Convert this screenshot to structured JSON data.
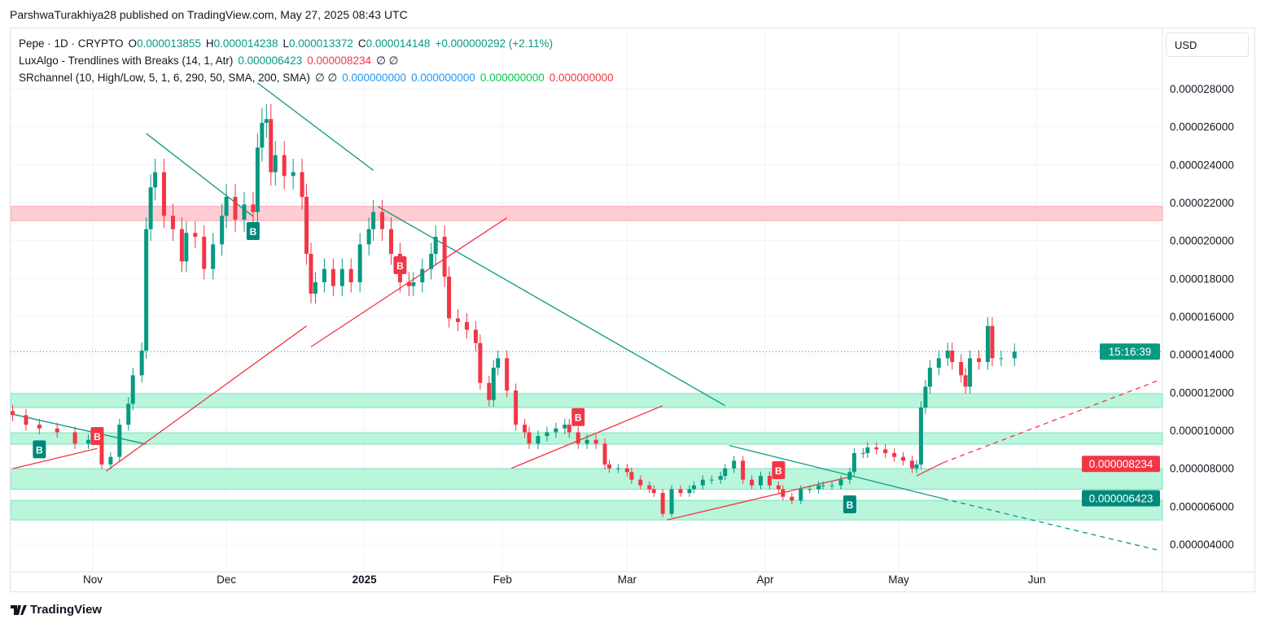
{
  "publisher": "ParshwaTurakhiya28 published on TradingView.com, May 27, 2025 08:43 UTC",
  "legend": {
    "symbol": "Pepe · 1D · CRYPTO",
    "o_label": "O",
    "o": "0.000013855",
    "h_label": "H",
    "h": "0.000014238",
    "l_label": "L",
    "l": "0.000013372",
    "c_label": "C",
    "c": "0.000014148",
    "change": "+0.000000292 (+2.11%)",
    "ind1": "LuxAlgo - Trendlines with Breaks (14, 1, Atr)",
    "ind1_v1": "0.000006423",
    "ind1_v2": "0.000008234",
    "ind1_v3": "∅  ∅",
    "ind2": "SRchannel (10, High/Low, 5, 1, 6, 290, 50, SMA, 200, SMA)",
    "ind2_na": "∅  ∅",
    "ind2_v1": "0.000000000",
    "ind2_v2": "0.000000000",
    "ind2_v3": "0.000000000",
    "ind2_v4": "0.000000000"
  },
  "currency_button": "USD",
  "logo": "TradingView",
  "colors": {
    "up": "#089981",
    "down": "#f23645",
    "resistance_zone": "#ffcdd2",
    "support_zone": "#b9f6dc"
  },
  "chart_data": {
    "type": "candlestick",
    "ylim": [
      3.5e-06,
      2.95e-05
    ],
    "y_ticks": [
      "0.000004000",
      "0.000006000",
      "0.000008000",
      "0.000010000",
      "0.000012000",
      "0.000014000",
      "0.000016000",
      "0.000018000",
      "0.000020000",
      "0.000022000",
      "0.000024000",
      "0.000026000",
      "0.000028000"
    ],
    "y_tick_values": [
      4e-06,
      6e-06,
      8e-06,
      1e-05,
      1.2e-05,
      1.4e-05,
      1.6e-05,
      1.8e-05,
      2e-05,
      2.2e-05,
      2.4e-05,
      2.6e-05,
      2.8e-05
    ],
    "x_ticks": [
      {
        "label": "Nov",
        "date": "2024-11-01"
      },
      {
        "label": "Dec",
        "date": "2024-12-01"
      },
      {
        "label": "2025",
        "date": "2025-01-01",
        "bold": true
      },
      {
        "label": "Feb",
        "date": "2025-02-01"
      },
      {
        "label": "Mar",
        "date": "2025-03-01"
      },
      {
        "label": "Apr",
        "date": "2025-04-01"
      },
      {
        "label": "May",
        "date": "2025-05-01"
      },
      {
        "label": "Jun",
        "date": "2025-06-01"
      }
    ],
    "series": [
      [
        "2024-10-14",
        1.08e-05
      ],
      [
        "2024-10-17",
        1.03e-05
      ],
      [
        "2024-10-20",
        1.01e-05
      ],
      [
        "2024-10-24",
        9.9e-06
      ],
      [
        "2024-10-28",
        9.3e-06
      ],
      [
        "2024-10-31",
        9.5e-06
      ],
      [
        "2024-11-03",
        8.2e-06
      ],
      [
        "2024-11-05",
        8.6e-06
      ],
      [
        "2024-11-07",
        1.03e-05
      ],
      [
        "2024-11-09",
        1.14e-05
      ],
      [
        "2024-11-10",
        1.29e-05
      ],
      [
        "2024-11-12",
        1.42e-05
      ],
      [
        "2024-11-13",
        2.06e-05
      ],
      [
        "2024-11-14",
        2.28e-05
      ],
      [
        "2024-11-15",
        2.36e-05
      ],
      [
        "2024-11-17",
        2.13e-05
      ],
      [
        "2024-11-19",
        2.06e-05
      ],
      [
        "2024-11-21",
        1.89e-05
      ],
      [
        "2024-11-22",
        2.04e-05
      ],
      [
        "2024-11-24",
        2.02e-05
      ],
      [
        "2024-11-26",
        1.85e-05
      ],
      [
        "2024-11-28",
        1.98e-05
      ],
      [
        "2024-11-30",
        2.13e-05
      ],
      [
        "2024-12-01",
        2.23e-05
      ],
      [
        "2024-12-03",
        2.11e-05
      ],
      [
        "2024-12-05",
        2.19e-05
      ],
      [
        "2024-12-07",
        2.15e-05
      ],
      [
        "2024-12-08",
        2.49e-05
      ],
      [
        "2024-12-09",
        2.62e-05
      ],
      [
        "2024-12-10",
        2.64e-05
      ],
      [
        "2024-12-11",
        2.36e-05
      ],
      [
        "2024-12-12",
        2.45e-05
      ],
      [
        "2024-12-14",
        2.34e-05
      ],
      [
        "2024-12-16",
        2.36e-05
      ],
      [
        "2024-12-18",
        2.23e-05
      ],
      [
        "2024-12-19",
        1.93e-05
      ],
      [
        "2024-12-20",
        1.72e-05
      ],
      [
        "2024-12-21",
        1.78e-05
      ],
      [
        "2024-12-23",
        1.85e-05
      ],
      [
        "2024-12-25",
        1.76e-05
      ],
      [
        "2024-12-27",
        1.85e-05
      ],
      [
        "2024-12-29",
        1.78e-05
      ],
      [
        "2024-12-31",
        1.98e-05
      ],
      [
        "2025-01-02",
        2.06e-05
      ],
      [
        "2025-01-03",
        2.15e-05
      ],
      [
        "2025-01-05",
        2.06e-05
      ],
      [
        "2025-01-07",
        1.93e-05
      ],
      [
        "2025-01-09",
        1.78e-05
      ],
      [
        "2025-01-11",
        1.76e-05
      ],
      [
        "2025-01-12",
        1.78e-05
      ],
      [
        "2025-01-14",
        1.85e-05
      ],
      [
        "2025-01-16",
        1.93e-05
      ],
      [
        "2025-01-17",
        2.02e-05
      ],
      [
        "2025-01-19",
        1.81e-05
      ],
      [
        "2025-01-20",
        1.59e-05
      ],
      [
        "2025-01-22",
        1.57e-05
      ],
      [
        "2025-01-24",
        1.53e-05
      ],
      [
        "2025-01-26",
        1.46e-05
      ],
      [
        "2025-01-27",
        1.25e-05
      ],
      [
        "2025-01-29",
        1.16e-05
      ],
      [
        "2025-01-30",
        1.33e-05
      ],
      [
        "2025-01-31",
        1.38e-05
      ],
      [
        "2025-02-02",
        1.21e-05
      ],
      [
        "2025-02-04",
        1.03e-05
      ],
      [
        "2025-02-06",
        9.9e-06
      ],
      [
        "2025-02-07",
        9.3e-06
      ],
      [
        "2025-02-09",
        9.7e-06
      ],
      [
        "2025-02-11",
        9.9e-06
      ],
      [
        "2025-02-13",
        1.01e-05
      ],
      [
        "2025-02-15",
        1.03e-05
      ],
      [
        "2025-02-16",
        9.9e-06
      ],
      [
        "2025-02-18",
        9.3e-06
      ],
      [
        "2025-02-20",
        9.5e-06
      ],
      [
        "2025-02-22",
        9.3e-06
      ],
      [
        "2025-02-24",
        8.2e-06
      ],
      [
        "2025-02-25",
        8e-06
      ],
      [
        "2025-02-27",
        8e-06
      ],
      [
        "2025-03-01",
        7.8e-06
      ],
      [
        "2025-03-02",
        7.4e-06
      ],
      [
        "2025-03-04",
        7.1e-06
      ],
      [
        "2025-03-06",
        6.9e-06
      ],
      [
        "2025-03-07",
        6.7e-06
      ],
      [
        "2025-03-09",
        5.6e-06
      ],
      [
        "2025-03-11",
        6.9e-06
      ],
      [
        "2025-03-13",
        6.7e-06
      ],
      [
        "2025-03-15",
        6.9e-06
      ],
      [
        "2025-03-16",
        7.1e-06
      ],
      [
        "2025-03-18",
        7.4e-06
      ],
      [
        "2025-03-20",
        7.4e-06
      ],
      [
        "2025-03-22",
        7.6e-06
      ],
      [
        "2025-03-23",
        8e-06
      ],
      [
        "2025-03-25",
        8.4e-06
      ],
      [
        "2025-03-27",
        7.4e-06
      ],
      [
        "2025-03-29",
        7.1e-06
      ],
      [
        "2025-03-31",
        7.6e-06
      ],
      [
        "2025-04-02",
        7.1e-06
      ],
      [
        "2025-04-04",
        6.9e-06
      ],
      [
        "2025-04-05",
        6.5e-06
      ],
      [
        "2025-04-07",
        6.3e-06
      ],
      [
        "2025-04-09",
        6.9e-06
      ],
      [
        "2025-04-11",
        6.9e-06
      ],
      [
        "2025-04-13",
        7.1e-06
      ],
      [
        "2025-04-14",
        7.1e-06
      ],
      [
        "2025-04-16",
        7.1e-06
      ],
      [
        "2025-04-18",
        7.4e-06
      ],
      [
        "2025-04-20",
        7.8e-06
      ],
      [
        "2025-04-21",
        8.8e-06
      ],
      [
        "2025-04-23",
        8.8e-06
      ],
      [
        "2025-04-24",
        9.1e-06
      ],
      [
        "2025-04-26",
        9e-06
      ],
      [
        "2025-04-28",
        8.8e-06
      ],
      [
        "2025-04-30",
        8.6e-06
      ],
      [
        "2025-05-02",
        8.4e-06
      ],
      [
        "2025-05-04",
        8e-06
      ],
      [
        "2025-05-05",
        8.2e-06
      ],
      [
        "2025-05-06",
        1.12e-05
      ],
      [
        "2025-05-07",
        1.23e-05
      ],
      [
        "2025-05-08",
        1.33e-05
      ],
      [
        "2025-05-10",
        1.38e-05
      ],
      [
        "2025-05-12",
        1.42e-05
      ],
      [
        "2025-05-13",
        1.36e-05
      ],
      [
        "2025-05-15",
        1.29e-05
      ],
      [
        "2025-05-16",
        1.23e-05
      ],
      [
        "2025-05-17",
        1.38e-05
      ],
      [
        "2025-05-19",
        1.36e-05
      ],
      [
        "2025-05-21",
        1.55e-05
      ],
      [
        "2025-05-22",
        1.38e-05
      ],
      [
        "2025-05-24",
        1.38e-05
      ],
      [
        "2025-05-27",
        1.4148e-05
      ]
    ],
    "zones": [
      {
        "kind": "resistance",
        "from": 2.105e-05,
        "to": 2.18e-05
      },
      {
        "kind": "support",
        "from": 1.12e-05,
        "to": 1.193e-05
      },
      {
        "kind": "support",
        "from": 9.27e-06,
        "to": 9.87e-06
      },
      {
        "kind": "support",
        "from": 6.9e-06,
        "to": 7.98e-06
      },
      {
        "kind": "support",
        "from": 5.28e-06,
        "to": 6.31e-06
      }
    ],
    "trendlines": [
      {
        "color": "teal",
        "p1": [
          "2024-10-14",
          1.085e-05
        ],
        "p2": [
          "2024-11-13",
          9.27e-06
        ]
      },
      {
        "color": "teal",
        "p1": [
          "2024-11-13",
          2.564e-05
        ],
        "p2": [
          "2024-12-07",
          2.127e-05
        ]
      },
      {
        "color": "teal",
        "p1": [
          "2024-12-08",
          2.83e-05
        ],
        "p2": [
          "2025-01-03",
          2.37e-05
        ]
      },
      {
        "color": "teal",
        "p1": [
          "2025-01-04",
          2.18e-05
        ],
        "p2": [
          "2025-03-23",
          1.13e-05
        ]
      },
      {
        "color": "teal",
        "p1": [
          "2025-03-24",
          9.2e-06
        ],
        "p2": [
          "2025-05-11",
          6.4e-06
        ]
      },
      {
        "color": "teal",
        "dashed": true,
        "p1": [
          "2025-05-11",
          6.4e-06
        ],
        "p2": [
          "2025-06-28",
          3.7e-06
        ]
      },
      {
        "color": "red",
        "p1": [
          "2024-10-14",
          7.98e-06
        ],
        "p2": [
          "2024-11-02",
          9.05e-06
        ]
      },
      {
        "color": "red",
        "p1": [
          "2024-11-04",
          7.85e-06
        ],
        "p2": [
          "2024-12-19",
          1.55e-05
        ]
      },
      {
        "color": "red",
        "p1": [
          "2024-12-20",
          1.44e-05
        ],
        "p2": [
          "2025-02-02",
          2.12e-05
        ]
      },
      {
        "color": "red",
        "p1": [
          "2025-02-03",
          8e-06
        ],
        "p2": [
          "2025-03-09",
          1.13e-05
        ]
      },
      {
        "color": "red",
        "p1": [
          "2025-03-10",
          5.28e-06
        ],
        "p2": [
          "2025-04-20",
          7.55e-06
        ]
      },
      {
        "color": "red",
        "p1": [
          "2025-05-05",
          7.6e-06
        ],
        "p2": [
          "2025-05-11",
          8.3e-06
        ]
      },
      {
        "color": "red",
        "dashed": true,
        "p1": [
          "2025-05-11",
          8.3e-06
        ],
        "p2": [
          "2025-06-28",
          1.26e-05
        ]
      }
    ],
    "break_labels": [
      {
        "text": "B",
        "kind": "bull",
        "date": "2024-10-20",
        "value": 9e-06
      },
      {
        "text": "B",
        "kind": "bear",
        "date": "2024-11-02",
        "value": 9.7e-06
      },
      {
        "text": "B",
        "kind": "bull",
        "date": "2024-12-07",
        "value": 2.05e-05
      },
      {
        "text": "B",
        "kind": "bear",
        "date": "2025-01-09",
        "value": 1.87e-05
      },
      {
        "text": "B",
        "kind": "bear",
        "date": "2025-02-18",
        "value": 1.07e-05
      },
      {
        "text": "B",
        "kind": "bear",
        "date": "2025-04-04",
        "value": 7.9e-06
      },
      {
        "text": "B",
        "kind": "bull",
        "date": "2025-04-20",
        "value": 6.1e-06
      }
    ],
    "price_labels": [
      {
        "text": "15:16:39",
        "value": 1.4148e-05,
        "color": "#089981",
        "dotted_line": true
      },
      {
        "text": "0.000008234",
        "value": 8.234e-06,
        "color": "#f23645"
      },
      {
        "text": "0.000006423",
        "value": 6.423e-06,
        "color": "#00897b"
      }
    ]
  }
}
